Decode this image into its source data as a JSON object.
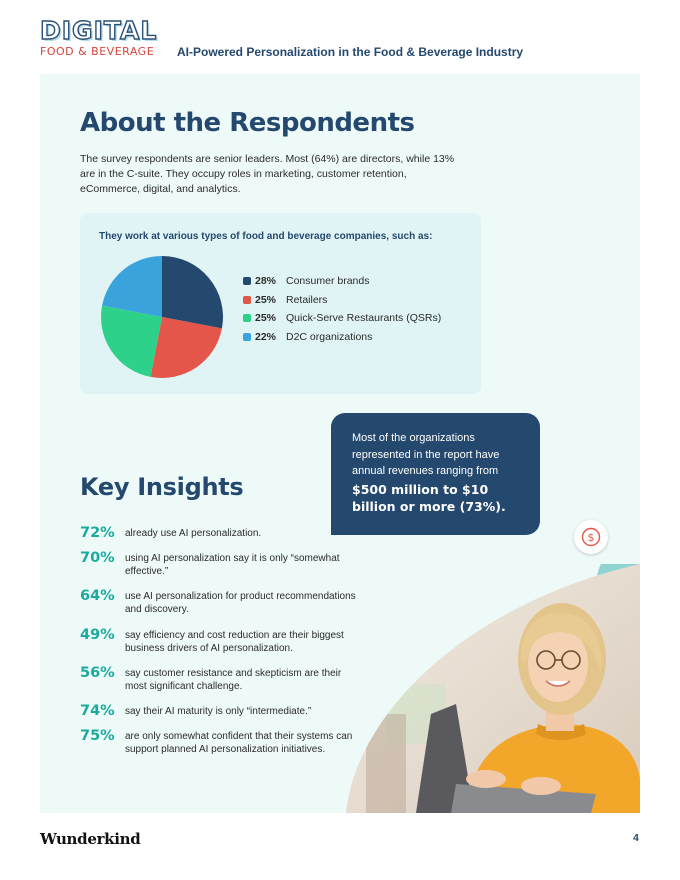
{
  "header": {
    "logo_top": "DIGITAL",
    "logo_bottom": "FOOD & BEVERAGE",
    "title": "AI-Powered Personalization in the Food & Beverage Industry"
  },
  "respondents": {
    "title": "About the Respondents",
    "intro": "The survey respondents are senior leaders. Most (64%) are directors, while 13% are in the C-suite. They occupy roles in marketing, customer retention, eCommerce, digital, and analytics."
  },
  "chart_data": {
    "type": "pie",
    "title": "They work at various types of food and beverage companies, such as:",
    "slices": [
      {
        "label": "Consumer brands",
        "value": 28,
        "display": "28%",
        "color": "#24486e"
      },
      {
        "label": "Retailers",
        "value": 25,
        "display": "25%",
        "color": "#e4554a"
      },
      {
        "label": "Quick-Serve Restaurants (QSRs)",
        "value": 25,
        "display": "25%",
        "color": "#2dd18a"
      },
      {
        "label": "D2C organizations",
        "value": 22,
        "display": "22%",
        "color": "#3aa3dc"
      }
    ],
    "legend_position": "right"
  },
  "insights": {
    "title": "Key Insights",
    "items": [
      {
        "value": "72%",
        "text": "already use AI personalization."
      },
      {
        "value": "70%",
        "text": "using AI personalization say it is only “somewhat effective.”"
      },
      {
        "value": "64%",
        "text": "use AI personalization for product recommendations and discovery."
      },
      {
        "value": "49%",
        "text": "say efficiency and cost reduction are their biggest business drivers of AI personalization."
      },
      {
        "value": "56%",
        "text": "say customer resistance and skepticism are their most significant challenge."
      },
      {
        "value": "74%",
        "text": "say their AI maturity is only “intermediate.”"
      },
      {
        "value": "75%",
        "text": "are only somewhat confident that their systems can support planned AI personalization initiatives."
      }
    ]
  },
  "callout": {
    "text": "Most of the organizations represented in the report have annual revenues ranging from",
    "strong": "$500 million to $10 billion or more (73%)."
  },
  "icons": {
    "dollar": "dollar-circle-icon"
  },
  "colors": {
    "navy": "#24486e",
    "teal": "#1aaa9f",
    "panel": "#eefaf8",
    "card": "#e0f4f5",
    "accent_red": "#d7443a"
  },
  "footer": {
    "brand": "Wunderkind",
    "page_number": "4"
  }
}
